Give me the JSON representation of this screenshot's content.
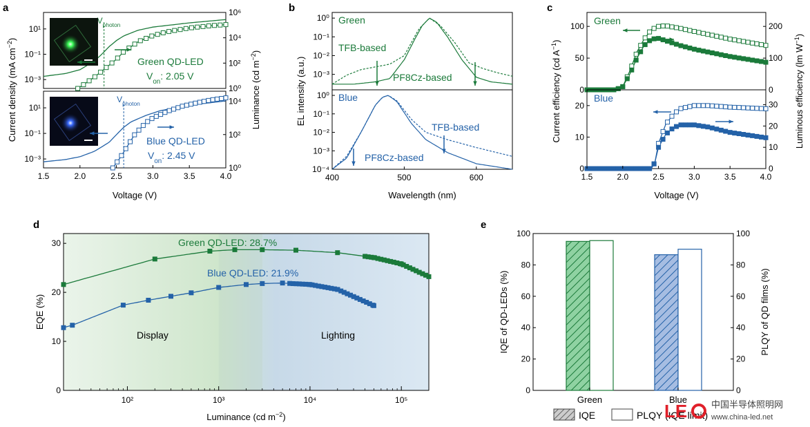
{
  "colors": {
    "green": "#1b7a3a",
    "blue": "#2462a8",
    "axis": "#000000",
    "green_fill": "#9fd3a9",
    "blue_fill": "#a8bfe0",
    "watermark_red": "#e0202a"
  },
  "watermark": {
    "cn": "中国半导体照明网",
    "url": "www.china-led.net"
  },
  "chart_data": [
    {
      "panel": "a",
      "type": "line",
      "xlabel": "Voltage (V)",
      "ylabel_left": "Current density (mA cm⁻²)",
      "ylabel_right": "Luminance (cd m⁻²)",
      "xlim": [
        1.5,
        4.0
      ],
      "xticks": [
        "1.5",
        "2.0",
        "2.5",
        "3.0",
        "3.5",
        "4.0"
      ],
      "subplots": [
        {
          "name": "Green",
          "left_ticks": [
            "10¹",
            "10⁻¹",
            "10⁻³"
          ],
          "right_ticks": [
            "10⁶",
            "10⁴",
            "10²",
            "10⁰"
          ],
          "annotation": "Green QD-LED",
          "von": "Vₒₙ: 2.05 V",
          "vphoton_label": "Vphoton",
          "vphoton": 2.33,
          "current_density": {
            "x": [
              1.5,
              1.8,
              2.0,
              2.2,
              2.3,
              2.4,
              2.5,
              2.6,
              2.8,
              3.0,
              3.5,
              4.0
            ],
            "y": [
              0.0018,
              0.003,
              0.006,
              0.03,
              0.1,
              0.4,
              1.2,
              2.8,
              8,
              14,
              30,
              55
            ]
          },
          "luminance": {
            "x": [
              1.97,
              2.05,
              2.2,
              2.35,
              2.5,
              2.6,
              2.8,
              3.0,
              3.2,
              3.5,
              3.8,
              4.0
            ],
            "y": [
              1,
              2,
              8,
              40,
              200,
              800,
              5000,
              15000,
              30000,
              60000,
              90000,
              110000
            ]
          }
        },
        {
          "name": "Blue",
          "left_ticks": [
            "10¹",
            "10⁻¹",
            "10⁻³"
          ],
          "right_ticks": [
            "10⁴",
            "10²",
            "10⁰"
          ],
          "annotation": "Blue QD-LED",
          "von": "Vₒₙ: 2.45 V",
          "vphoton_label": "Vphoton",
          "vphoton": 2.6,
          "current_density": {
            "x": [
              1.5,
              1.8,
              2.0,
              2.2,
              2.4,
              2.5,
              2.6,
              2.7,
              2.9,
              3.1,
              3.5,
              4.0
            ],
            "y": [
              0.0006,
              0.0009,
              0.0015,
              0.004,
              0.02,
              0.08,
              0.3,
              0.8,
              2.5,
              6,
              16,
              35
            ]
          },
          "luminance": {
            "x": [
              2.45,
              2.55,
              2.65,
              2.75,
              2.9,
              3.0,
              3.2,
              3.4,
              3.6,
              3.8,
              4.0
            ],
            "y": [
              1,
              4,
              20,
              100,
              500,
              1000,
              2500,
              5000,
              8000,
              12000,
              16000
            ]
          }
        }
      ]
    },
    {
      "panel": "b",
      "type": "line",
      "xlabel": "Wavelength (nm)",
      "ylabel": "EL intensity (a.u.)",
      "xlim": [
        400,
        650
      ],
      "xticks": [
        "400",
        "500",
        "600"
      ],
      "subplots": [
        {
          "name": "Green",
          "yticks": [
            "10⁰",
            "10⁻¹",
            "10⁻²",
            "10⁻³"
          ],
          "labels": [
            "TFB-based",
            "PF8Cz-based"
          ],
          "series": [
            {
              "name": "TFB-based",
              "style": "dashed",
              "x": [
                400,
                420,
                440,
                460,
                480,
                500,
                520,
                535,
                550,
                570,
                590,
                610,
                630,
                650
              ],
              "y": [
                0.0003,
                0.0009,
                0.0018,
                0.0025,
                0.0035,
                0.01,
                0.25,
                1.0,
                0.4,
                0.05,
                0.004,
                0.002,
                0.0012,
                0.0008
              ]
            },
            {
              "name": "PF8Cz-based",
              "style": "solid",
              "x": [
                400,
                430,
                460,
                480,
                500,
                515,
                525,
                535,
                545,
                560,
                580,
                600,
                620,
                650
              ],
              "y": [
                0.0003,
                0.0003,
                0.0004,
                0.0006,
                0.006,
                0.08,
                0.4,
                1.0,
                0.6,
                0.1,
                0.006,
                0.0007,
                0.0004,
                0.0003
              ]
            }
          ]
        },
        {
          "name": "Blue",
          "yticks": [
            "10⁰",
            "10⁻¹",
            "10⁻²",
            "10⁻³",
            "10⁻⁴"
          ],
          "labels": [
            "TFB-based",
            "PF8Cz-based"
          ],
          "series": [
            {
              "name": "TFB-based",
              "style": "dashed",
              "x": [
                400,
                420,
                440,
                460,
                470,
                478,
                490,
                510,
                530,
                560,
                600,
                650
              ],
              "y": [
                0.0001,
                0.0005,
                0.01,
                0.3,
                0.8,
                1.0,
                0.5,
                0.05,
                0.01,
                0.004,
                0.0015,
                0.0005
              ]
            },
            {
              "name": "PF8Cz-based",
              "style": "solid",
              "x": [
                400,
                420,
                440,
                460,
                470,
                478,
                490,
                510,
                530,
                560,
                600,
                650
              ],
              "y": [
                0.0001,
                0.0004,
                0.01,
                0.3,
                0.8,
                1.0,
                0.45,
                0.03,
                0.004,
                0.0008,
                0.0002,
                0.0001
              ]
            }
          ]
        }
      ]
    },
    {
      "panel": "c",
      "type": "line",
      "xlabel": "Voltage (V)",
      "ylabel_left": "Current efficiency (cd A⁻¹)",
      "ylabel_right": "Luminous efficiency (lm W⁻¹)",
      "xlim": [
        1.5,
        4.0
      ],
      "xticks": [
        "1.5",
        "2.0",
        "2.5",
        "3.0",
        "3.5",
        "4.0"
      ],
      "subplots": [
        {
          "name": "Green",
          "left_ticks": [
            "100",
            "50",
            "0"
          ],
          "right_ticks": [
            "200",
            "100",
            "0"
          ],
          "current_efficiency": {
            "x": [
              1.5,
              1.9,
              2.0,
              2.1,
              2.2,
              2.3,
              2.4,
              2.5,
              2.6,
              2.8,
              3.0,
              3.5,
              4.0
            ],
            "y": [
              0,
              0,
              5,
              30,
              60,
              80,
              95,
              100,
              101,
              97,
              92,
              80,
              70
            ]
          },
          "luminous_efficiency": {
            "x": [
              1.5,
              1.9,
              2.0,
              2.1,
              2.2,
              2.3,
              2.4,
              2.5,
              2.6,
              2.8,
              3.0,
              3.5,
              4.0
            ],
            "y": [
              0,
              0,
              10,
              50,
              100,
              140,
              160,
              162,
              155,
              140,
              128,
              105,
              87
            ]
          }
        },
        {
          "name": "Blue",
          "left_ticks": [
            "20",
            "10",
            "0"
          ],
          "right_ticks": [
            "30",
            "20",
            "10",
            "0"
          ],
          "current_efficiency": {
            "x": [
              1.5,
              2.0,
              2.4,
              2.45,
              2.5,
              2.6,
              2.7,
              2.8,
              3.0,
              3.2,
              3.5,
              4.0
            ],
            "y": [
              0,
              0,
              0,
              2,
              8,
              14,
              17,
              19,
              20,
              20,
              19.5,
              19
            ]
          },
          "luminous_efficiency": {
            "x": [
              1.5,
              2.0,
              2.4,
              2.45,
              2.5,
              2.6,
              2.7,
              2.8,
              3.0,
              3.2,
              3.5,
              4.0
            ],
            "y": [
              0,
              0,
              0,
              3,
              10,
              16,
              19,
              20.5,
              20.5,
              19.5,
              17,
              14.5
            ]
          }
        }
      ]
    },
    {
      "panel": "d",
      "type": "line",
      "xlabel": "Luminance (cd m⁻²)",
      "ylabel": "EQE (%)",
      "xscale": "log",
      "xlim": [
        20,
        200000
      ],
      "ylim": [
        0,
        32
      ],
      "xticks": [
        "10²",
        "10³",
        "10⁴",
        "10⁵"
      ],
      "yticks": [
        "30",
        "20",
        "10",
        "0"
      ],
      "regions": [
        "Display",
        "Lighting"
      ],
      "series": [
        {
          "name": "Green QD-LED: 28.7%",
          "x": [
            20,
            200,
            800,
            1500,
            3000,
            7000,
            20000,
            50000,
            100000,
            200000
          ],
          "y": [
            21.6,
            26.8,
            28.4,
            28.7,
            28.7,
            28.6,
            28.1,
            27.1,
            25.8,
            23.2
          ]
        },
        {
          "name": "Blue QD-LED: 21.9%",
          "x": [
            20,
            25,
            90,
            170,
            300,
            500,
            1000,
            2000,
            3000,
            5000,
            10000,
            20000,
            50000
          ],
          "y": [
            12.8,
            13.3,
            17.4,
            18.4,
            19.2,
            19.9,
            21.0,
            21.6,
            21.8,
            21.9,
            21.6,
            20.6,
            17.3
          ]
        }
      ]
    },
    {
      "panel": "e",
      "type": "bar",
      "ylabel_left": "IQE of QD-LEDs (%)",
      "ylabel_right": "PLQY of QD films (%)",
      "ylim": [
        0,
        100
      ],
      "yticks": [
        "100",
        "80",
        "60",
        "40",
        "20",
        "0"
      ],
      "categories": [
        "Green",
        "Blue"
      ],
      "legend": [
        "IQE",
        "PLQY (IQE limit)"
      ],
      "series": [
        {
          "name": "IQE",
          "values": [
            95,
            86.5
          ]
        },
        {
          "name": "PLQY (IQE limit)",
          "values": [
            95.5,
            90
          ]
        }
      ]
    }
  ]
}
